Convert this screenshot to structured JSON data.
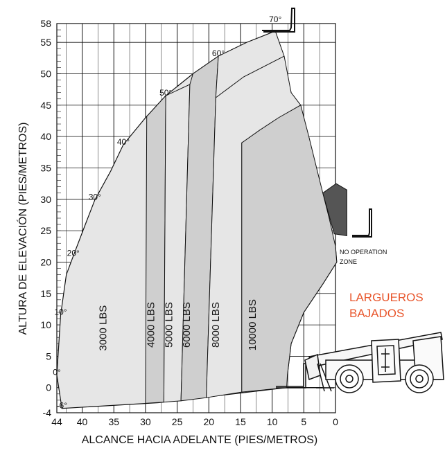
{
  "chart_data": {
    "type": "area",
    "title": "",
    "xlabel": "ALCANCE HACIA ADELANTE (PIES/METROS)",
    "ylabel": "ALTURA DE ELEVACIÓN (PIES/METROS)",
    "xlim": [
      44,
      0
    ],
    "ylim": [
      -4,
      58
    ],
    "x_ticks": [
      44,
      40,
      35,
      30,
      25,
      20,
      15,
      10,
      5,
      0
    ],
    "y_ticks": [
      -4,
      0,
      5,
      10,
      15,
      20,
      25,
      30,
      35,
      40,
      45,
      50,
      55,
      58
    ],
    "grid": true,
    "angle_markers": [
      {
        "label": "70°",
        "x": 9.5,
        "y": 58.2
      },
      {
        "label": "60°",
        "x": 18.5,
        "y": 52.8
      },
      {
        "label": "50°",
        "x": 26.8,
        "y": 46.5
      },
      {
        "label": "40°",
        "x": 33.5,
        "y": 38.7
      },
      {
        "label": "30°",
        "x": 38.0,
        "y": 29.9
      },
      {
        "label": "20°",
        "x": 41.4,
        "y": 21.0
      },
      {
        "label": "10°",
        "x": 43.4,
        "y": 11.6
      },
      {
        "label": "0°",
        "x": 44.0,
        "y": 2.0
      },
      {
        "label": "-6°",
        "x": 43.2,
        "y": -3.3
      }
    ],
    "load_zones": [
      {
        "label": "3000 LBS",
        "label_x": 36.2,
        "label_y": 9.5,
        "fill": "#e6e6e6",
        "boundary": [
          [
            43,
            -3
          ],
          [
            40.5,
            0
          ],
          [
            41.5,
            10
          ],
          [
            42.5,
            5
          ],
          [
            42,
            16
          ],
          [
            40,
            25
          ],
          [
            36,
            33
          ],
          [
            30,
            42
          ],
          [
            25,
            47
          ],
          [
            19,
            52.5
          ],
          [
            13.5,
            55.2
          ],
          [
            8.5,
            57
          ],
          [
            30,
            -2.5
          ]
        ]
      },
      {
        "label": "4000 LBS",
        "label_x": 28.6,
        "label_y": 10,
        "fill": "#cfcfcf",
        "boundary": [
          [
            30,
            -2.5
          ],
          [
            29.8,
            11
          ],
          [
            29.8,
            43.2
          ],
          [
            26.8,
            45.5
          ],
          [
            27,
            -2.2
          ]
        ]
      },
      {
        "label": "5000 LBS",
        "label_x": 25.8,
        "label_y": 10,
        "fill": "#e6e6e6",
        "boundary": [
          [
            27,
            -2.2
          ],
          [
            26.8,
            45.5
          ],
          [
            22.8,
            48.3
          ],
          [
            24,
            -2
          ]
        ]
      },
      {
        "label": "6000 LBS",
        "label_x": 23,
        "label_y": 10,
        "fill": "#cfcfcf",
        "boundary": [
          [
            24,
            -2
          ],
          [
            22.8,
            48.3
          ],
          [
            16.5,
            52.8
          ],
          [
            20.3,
            -1.5
          ]
        ]
      },
      {
        "label": "8000 LBS",
        "label_x": 18.4,
        "label_y": 10,
        "fill": "#e6e6e6",
        "boundary": [
          [
            20.3,
            -1.5
          ],
          [
            19,
            45.5
          ],
          [
            15,
            49.5
          ],
          [
            8,
            53
          ],
          [
            5.5,
            45
          ],
          [
            14.8,
            -0.5
          ]
        ]
      },
      {
        "label": "10000 LBS",
        "label_x": 12.6,
        "label_y": 10,
        "fill": "#cfcfcf",
        "boundary": [
          [
            14.8,
            -0.5
          ],
          [
            14.8,
            39
          ],
          [
            12,
            41
          ],
          [
            9,
            43
          ],
          [
            5.5,
            45
          ],
          [
            2,
            31.5
          ],
          [
            0.5,
            25
          ]
        ]
      }
    ],
    "annotations": [
      {
        "text": "NO OPERATION",
        "x": -1.2,
        "y": 21.5
      },
      {
        "text": "ZONE",
        "x": -1.2,
        "y": 20.1
      }
    ],
    "legend_text": [
      "LARGUEROS",
      "BAJADOS"
    ]
  },
  "colors": {
    "zone_light": "#e6e6e6",
    "zone_dark": "#cfcfcf",
    "no_op_zone": "#555555",
    "accent": "#e8552b",
    "grid": "#111111"
  },
  "icons": {
    "machine": "telehandler-icon",
    "fork": "fork-icon"
  }
}
